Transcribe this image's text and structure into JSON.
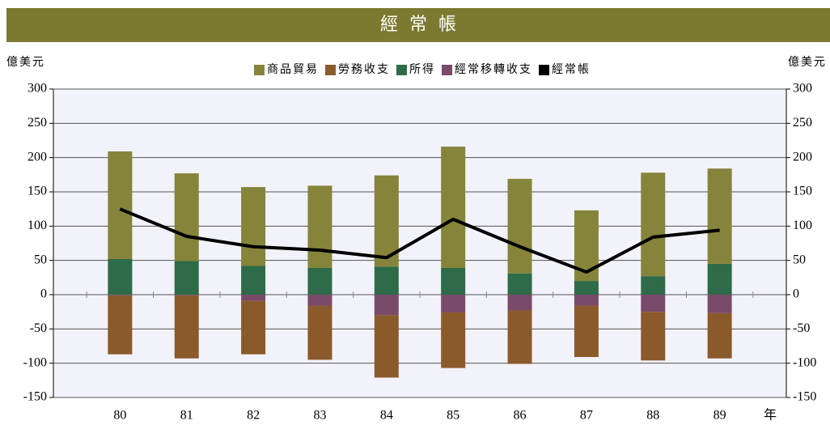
{
  "chart_data": {
    "type": "bar",
    "title": "經常帳",
    "ylabel": "億美元",
    "y2label": "億美元",
    "xlabel": "年",
    "categories": [
      "80",
      "81",
      "82",
      "83",
      "84",
      "85",
      "86",
      "87",
      "88",
      "89"
    ],
    "series": [
      {
        "name": "商品貿易",
        "color": "#85843a",
        "values": [
          157,
          128,
          115,
          120,
          133,
          177,
          138,
          103,
          151,
          139
        ]
      },
      {
        "name": "勞務收支",
        "color": "#8b5a2b",
        "values": [
          -86,
          -92,
          -78,
          -79,
          -91,
          -81,
          -78,
          -75,
          -71,
          -66
        ]
      },
      {
        "name": "所得",
        "color": "#2e6b48",
        "values": [
          52,
          49,
          42,
          39,
          41,
          39,
          31,
          20,
          27,
          45
        ]
      },
      {
        "name": "經常移轉收支",
        "color": "#7a4a6a",
        "values": [
          -1,
          -1,
          -9,
          -16,
          -30,
          -26,
          -23,
          -16,
          -25,
          -27
        ]
      },
      {
        "name": "經常帳",
        "color": "#000000",
        "type": "line",
        "values": [
          125,
          85,
          70,
          65,
          54,
          110,
          70,
          33,
          84,
          94
        ]
      }
    ],
    "ylim": [
      -150,
      300
    ],
    "yticks": [
      -150,
      -100,
      -50,
      0,
      50,
      100,
      150,
      200,
      250,
      300
    ],
    "y2lim": [
      -150,
      300
    ],
    "y2ticks": [
      -150,
      -100,
      -50,
      0,
      50,
      100,
      150,
      200,
      250,
      300
    ]
  }
}
